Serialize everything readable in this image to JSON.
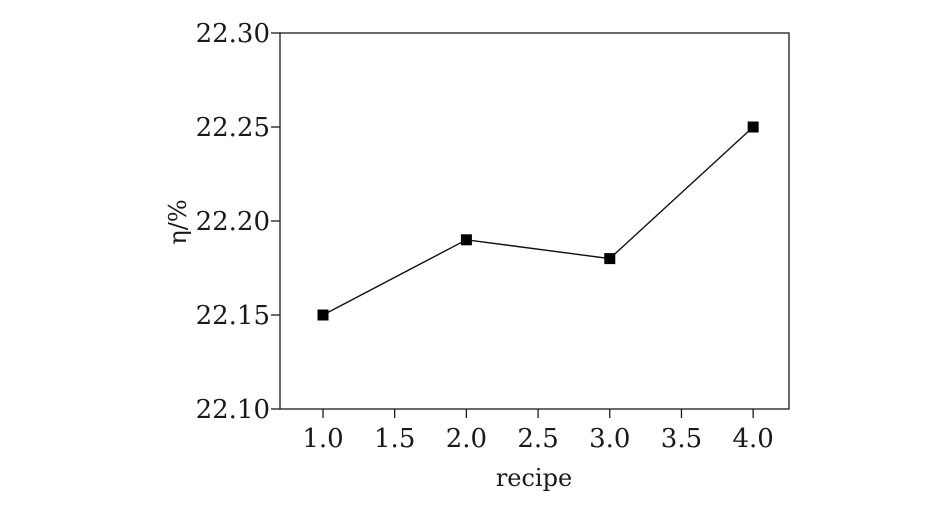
{
  "chart_data": {
    "type": "line",
    "title": "",
    "xlabel": "recipe",
    "ylabel": "η/%",
    "xlim": [
      0.7,
      4.25
    ],
    "ylim": [
      22.1,
      22.3
    ],
    "x_ticks": [
      "1.0",
      "1.5",
      "2.0",
      "2.5",
      "3.0",
      "3.5",
      "4.0"
    ],
    "y_ticks": [
      "22.10",
      "22.15",
      "22.20",
      "22.25",
      "22.30"
    ],
    "grid": false,
    "legend": "none",
    "series": [
      {
        "marker": "square",
        "color": "#000000",
        "points": [
          {
            "x": 1.0,
            "y": 22.15
          },
          {
            "x": 2.0,
            "y": 22.19
          },
          {
            "x": 3.0,
            "y": 22.18
          },
          {
            "x": 4.0,
            "y": 22.25
          }
        ]
      }
    ]
  }
}
